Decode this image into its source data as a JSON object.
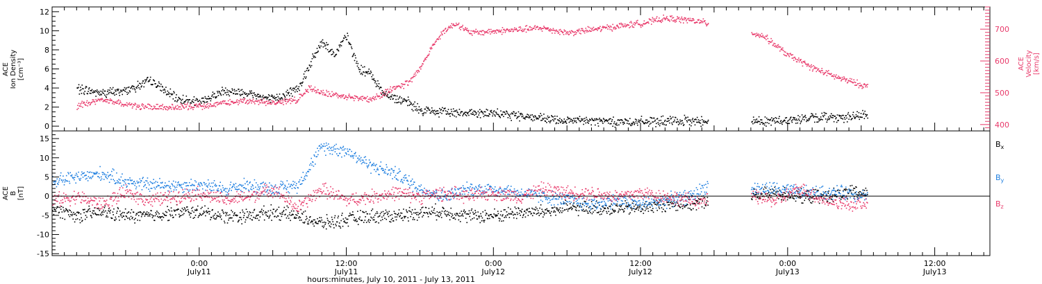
{
  "chart_data": [
    {
      "type": "scatter",
      "ylabel": [
        "ACE",
        "Ion Density",
        "[cm⁻³]"
      ],
      "ylim": [
        -0.5,
        12.5
      ],
      "yticks": [
        0,
        2,
        4,
        6,
        8,
        10,
        12
      ],
      "y2label": [
        "ACE",
        "Velocity",
        "[km/s]"
      ],
      "y2lim": [
        380,
        770
      ],
      "y2ticks": [
        400,
        500,
        600,
        700
      ],
      "y2_color": "#e8396a",
      "series": [
        {
          "color": "#000000",
          "axis": "left",
          "x": [
            -10,
            -8,
            -6,
            -4,
            -2,
            0,
            2,
            4,
            6,
            8,
            9,
            10,
            11,
            12,
            13,
            14,
            15,
            16,
            17,
            18,
            20,
            22,
            24,
            26,
            28,
            30,
            32,
            34,
            36,
            38,
            40,
            41.5,
            45,
            47,
            49,
            51,
            53,
            54.5
          ],
          "y": [
            4.0,
            3.5,
            3.8,
            4.8,
            3.0,
            2.5,
            3.8,
            3.5,
            2.8,
            4.0,
            6.5,
            9.0,
            7.5,
            9.5,
            6.0,
            5.5,
            3.5,
            3.0,
            2.5,
            1.7,
            1.5,
            1.5,
            1.3,
            1.2,
            0.8,
            0.6,
            0.6,
            0.5,
            0.5,
            0.55,
            0.6,
            0.6,
            0.6,
            0.6,
            0.8,
            1.0,
            1.0,
            1.2
          ]
        },
        {
          "color": "#e8396a",
          "axis": "right",
          "x": [
            -10,
            -8,
            -6,
            -4,
            -2,
            0,
            2,
            4,
            6,
            8,
            9,
            10,
            12,
            14,
            16,
            17,
            18,
            19,
            20,
            21,
            22,
            24,
            26,
            28,
            30,
            32,
            34,
            36,
            38,
            40,
            41.5,
            45,
            46,
            48,
            50,
            52,
            54.5
          ],
          "y": [
            460,
            480,
            465,
            455,
            455,
            460,
            470,
            475,
            470,
            480,
            520,
            500,
            490,
            480,
            520,
            530,
            580,
            650,
            700,
            720,
            690,
            695,
            700,
            705,
            690,
            700,
            710,
            720,
            735,
            730,
            720,
            690,
            680,
            620,
            580,
            550,
            520
          ]
        }
      ]
    },
    {
      "type": "scatter",
      "ylabel": [
        "ACE",
        "B",
        "[nT]"
      ],
      "ylim": [
        -15.5,
        17
      ],
      "yticks": [
        -15,
        -10,
        -5,
        0,
        5,
        10,
        15
      ],
      "zero_line": true,
      "xlabel": "hours:minutes, July 10, 2011 - July 13, 2011",
      "xlim": [
        -12,
        64.5
      ],
      "xticks": [
        {
          "x": 0,
          "time": "0:00",
          "date": "July11"
        },
        {
          "x": 12,
          "time": "12:00",
          "date": "July11"
        },
        {
          "x": 24,
          "time": "0:00",
          "date": "July12"
        },
        {
          "x": 36,
          "time": "12:00",
          "date": "July12"
        },
        {
          "x": 48,
          "time": "0:00",
          "date": "July13"
        },
        {
          "x": 60,
          "time": "12:00",
          "date": "July13"
        }
      ],
      "legend_position": "right",
      "series": [
        {
          "name": "Bx",
          "name_main": "B",
          "name_sub": "x",
          "color": "#000000",
          "x": [
            -12,
            -10,
            -8,
            -6,
            -4,
            -2,
            0,
            2,
            4,
            6,
            8,
            10,
            12,
            14,
            16,
            18,
            20,
            22,
            24,
            26,
            28,
            30,
            32,
            34,
            36,
            38,
            40,
            41.5,
            45,
            47,
            49,
            51,
            53,
            54.5
          ],
          "y": [
            -3,
            -5,
            -4,
            -5,
            -5,
            -4,
            -4,
            -5,
            -5,
            -4,
            -5,
            -7,
            -6,
            -5,
            -5,
            -4,
            -4,
            -5,
            -5,
            -4,
            -4,
            -3,
            -3,
            -3,
            -3,
            -2,
            -2,
            -1,
            0,
            1,
            0,
            0,
            1,
            1
          ]
        },
        {
          "name": "By",
          "name_main": "B",
          "name_sub": "y",
          "color": "#1f7fe0",
          "x": [
            -12,
            -10,
            -8,
            -6,
            -4,
            -2,
            0,
            2,
            4,
            6,
            8,
            10,
            12,
            14,
            16,
            18,
            20,
            22,
            24,
            26,
            28,
            30,
            32,
            34,
            36,
            38,
            40,
            41.5,
            45,
            47,
            49,
            51,
            53,
            54.5
          ],
          "y": [
            4,
            5,
            6,
            4,
            3,
            3,
            3,
            2,
            3,
            2,
            3,
            13,
            12,
            8,
            6,
            2,
            0,
            2,
            2,
            1,
            0,
            -1,
            -2,
            -1,
            -2,
            -1,
            0,
            3,
            2,
            2,
            1,
            1,
            1,
            0
          ]
        },
        {
          "name": "Bz",
          "name_main": "B",
          "name_sub": "z",
          "color": "#e8396a",
          "x": [
            -12,
            -10,
            -8,
            -6,
            -4,
            -2,
            0,
            2,
            4,
            6,
            8,
            10,
            12,
            14,
            16,
            18,
            20,
            22,
            24,
            26,
            28,
            30,
            32,
            34,
            36,
            38,
            40,
            41.5,
            45,
            47,
            49,
            51,
            53,
            54.5
          ],
          "y": [
            -1,
            0,
            -2,
            1,
            -1,
            0,
            1,
            -1,
            0,
            2,
            -3,
            2,
            -1,
            0,
            1,
            0,
            1,
            0,
            1,
            0,
            2,
            1,
            1,
            0,
            1,
            0,
            -1,
            -1,
            0,
            -1,
            2,
            -1,
            -2,
            -2
          ]
        }
      ]
    }
  ]
}
